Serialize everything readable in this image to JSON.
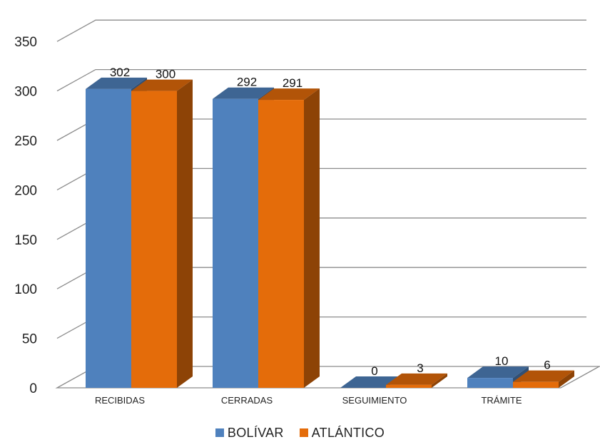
{
  "chart_data": {
    "type": "bar",
    "categories": [
      "RECIBIDAS",
      "CERRADAS",
      "SEGUIMIENTO",
      "TRÁMITE"
    ],
    "series": [
      {
        "name": "BOLÍVAR",
        "values": [
          302,
          292,
          0,
          10
        ],
        "color": "#4F81BD"
      },
      {
        "name": "ATLÁNTICO",
        "values": [
          300,
          291,
          3,
          6
        ],
        "color": "#E46C0A"
      }
    ],
    "y_ticks": [
      0,
      50,
      100,
      150,
      200,
      250,
      300,
      350
    ],
    "ylim": [
      0,
      350
    ],
    "grid": true,
    "legend_position": "bottom",
    "three_d": true
  },
  "legend": {
    "items": [
      {
        "label": "BOLÍVAR",
        "color": "#4F81BD"
      },
      {
        "label": "ATLÁNTICO",
        "color": "#E46C0A"
      }
    ]
  }
}
